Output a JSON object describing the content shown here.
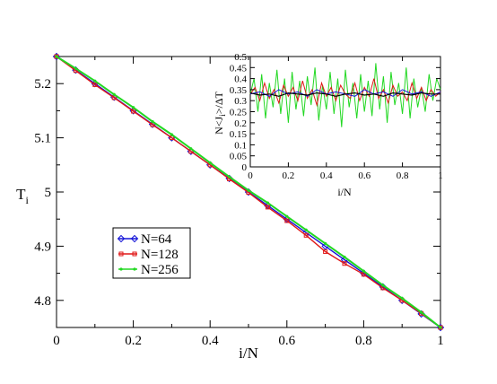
{
  "chart_data": [
    {
      "type": "line",
      "xlabel": "i/N",
      "ylabel": "T_i",
      "xlim": [
        0,
        1
      ],
      "ylim": [
        4.75,
        5.25
      ],
      "xticks": [
        "0",
        "0.2",
        "0.4",
        "0.6",
        "0.8",
        "1"
      ],
      "yticks": [
        "4.8",
        "4.9",
        "5",
        "5.1",
        "5.2"
      ],
      "legend_position": "lower-left",
      "series": [
        {
          "name": "N=64",
          "color": "#1515d8",
          "marker": "diamond",
          "x": [
            0,
            0.05,
            0.1,
            0.15,
            0.2,
            0.25,
            0.3,
            0.35,
            0.4,
            0.45,
            0.5,
            0.55,
            0.6,
            0.65,
            0.7,
            0.75,
            0.8,
            0.85,
            0.9,
            0.95,
            1.0
          ],
          "y": [
            5.25,
            5.225,
            5.2,
            5.175,
            5.15,
            5.125,
            5.1,
            5.075,
            5.05,
            5.025,
            5.0,
            4.975,
            4.95,
            4.925,
            4.9,
            4.875,
            4.85,
            4.825,
            4.8,
            4.775,
            4.75
          ]
        },
        {
          "name": "N=128",
          "color": "#e01818",
          "marker": "square",
          "x": [
            0,
            0.05,
            0.1,
            0.15,
            0.2,
            0.25,
            0.3,
            0.35,
            0.4,
            0.45,
            0.5,
            0.55,
            0.6,
            0.65,
            0.7,
            0.75,
            0.8,
            0.85,
            0.9,
            0.95,
            1.0
          ],
          "y": [
            5.25,
            5.224,
            5.198,
            5.174,
            5.149,
            5.124,
            5.1,
            5.075,
            5.05,
            5.024,
            4.999,
            4.972,
            4.947,
            4.92,
            4.89,
            4.868,
            4.848,
            4.823,
            4.8,
            4.776,
            4.75
          ]
        },
        {
          "name": "N=256",
          "color": "#22d822",
          "marker": "circle",
          "x": [
            0,
            0.05,
            0.1,
            0.15,
            0.2,
            0.25,
            0.3,
            0.35,
            0.4,
            0.45,
            0.5,
            0.55,
            0.6,
            0.65,
            0.7,
            0.75,
            0.8,
            0.85,
            0.9,
            0.95,
            1.0
          ],
          "y": [
            5.25,
            5.228,
            5.205,
            5.18,
            5.156,
            5.13,
            5.106,
            5.08,
            5.054,
            5.028,
            5.003,
            4.98,
            4.955,
            4.93,
            4.905,
            4.88,
            4.854,
            4.828,
            4.804,
            4.778,
            4.75
          ]
        }
      ]
    },
    {
      "type": "line",
      "xlabel": "i/N",
      "ylabel": "N<J_i>/ΔT",
      "xlim": [
        0,
        1
      ],
      "ylim": [
        0,
        0.5
      ],
      "xticks": [
        "0",
        "0.2",
        "0.4",
        "0.6",
        "0.8",
        "1"
      ],
      "yticks": [
        "0",
        "0.05",
        "0.1",
        "0.15",
        "0.2",
        "0.25",
        "0.3",
        "0.35",
        "0.4",
        "0.45",
        "0.5"
      ],
      "series": [
        {
          "color": "#1515d8",
          "x": [
            0,
            0.05,
            0.1,
            0.15,
            0.2,
            0.25,
            0.3,
            0.35,
            0.4,
            0.45,
            0.5,
            0.55,
            0.6,
            0.65,
            0.7,
            0.75,
            0.8,
            0.85,
            0.9,
            0.95,
            1.0
          ],
          "y": [
            0.33,
            0.34,
            0.32,
            0.35,
            0.33,
            0.34,
            0.32,
            0.35,
            0.33,
            0.34,
            0.33,
            0.32,
            0.35,
            0.33,
            0.34,
            0.32,
            0.35,
            0.33,
            0.34,
            0.32,
            0.34
          ]
        },
        {
          "color": "#e01818",
          "x": [
            0,
            0.025,
            0.05,
            0.075,
            0.1,
            0.125,
            0.15,
            0.175,
            0.2,
            0.225,
            0.25,
            0.275,
            0.3,
            0.325,
            0.35,
            0.375,
            0.4,
            0.425,
            0.45,
            0.475,
            0.5,
            0.525,
            0.55,
            0.575,
            0.6,
            0.625,
            0.65,
            0.675,
            0.7,
            0.725,
            0.75,
            0.775,
            0.8,
            0.825,
            0.85,
            0.875,
            0.9,
            0.925,
            0.95,
            0.975,
            1.0
          ],
          "y": [
            0.33,
            0.36,
            0.3,
            0.38,
            0.31,
            0.35,
            0.29,
            0.37,
            0.32,
            0.36,
            0.3,
            0.39,
            0.31,
            0.35,
            0.28,
            0.38,
            0.32,
            0.36,
            0.3,
            0.37,
            0.33,
            0.31,
            0.38,
            0.3,
            0.36,
            0.32,
            0.4,
            0.31,
            0.35,
            0.29,
            0.37,
            0.32,
            0.34,
            0.3,
            0.38,
            0.31,
            0.36,
            0.3,
            0.35,
            0.32,
            0.34
          ]
        },
        {
          "color": "#22d822",
          "x": [
            0,
            0.02,
            0.04,
            0.06,
            0.08,
            0.1,
            0.12,
            0.14,
            0.16,
            0.18,
            0.2,
            0.22,
            0.24,
            0.26,
            0.28,
            0.3,
            0.32,
            0.34,
            0.36,
            0.38,
            0.4,
            0.42,
            0.44,
            0.46,
            0.48,
            0.5,
            0.52,
            0.54,
            0.56,
            0.58,
            0.6,
            0.62,
            0.64,
            0.66,
            0.68,
            0.7,
            0.72,
            0.74,
            0.76,
            0.78,
            0.8,
            0.82,
            0.84,
            0.86,
            0.88,
            0.9,
            0.92,
            0.94,
            0.96,
            0.98,
            1.0
          ],
          "y": [
            0.33,
            0.4,
            0.25,
            0.42,
            0.22,
            0.38,
            0.27,
            0.44,
            0.24,
            0.4,
            0.2,
            0.43,
            0.26,
            0.39,
            0.23,
            0.41,
            0.28,
            0.45,
            0.21,
            0.37,
            0.26,
            0.43,
            0.24,
            0.4,
            0.18,
            0.44,
            0.27,
            0.38,
            0.22,
            0.42,
            0.25,
            0.39,
            0.23,
            0.47,
            0.26,
            0.41,
            0.2,
            0.43,
            0.28,
            0.38,
            0.24,
            0.45,
            0.22,
            0.4,
            0.27,
            0.36,
            0.25,
            0.42,
            0.3,
            0.4,
            0.35
          ]
        },
        {
          "color": "#000000",
          "x": [
            0,
            0.05,
            0.1,
            0.15,
            0.2,
            0.25,
            0.3,
            0.35,
            0.4,
            0.45,
            0.5,
            0.55,
            0.6,
            0.65,
            0.7,
            0.75,
            0.8,
            0.85,
            0.9,
            0.95,
            1.0
          ],
          "y": [
            0.335,
            0.325,
            0.33,
            0.32,
            0.335,
            0.33,
            0.325,
            0.335,
            0.33,
            0.32,
            0.33,
            0.335,
            0.325,
            0.33,
            0.32,
            0.335,
            0.33,
            0.325,
            0.335,
            0.33,
            0.33
          ]
        }
      ]
    }
  ]
}
